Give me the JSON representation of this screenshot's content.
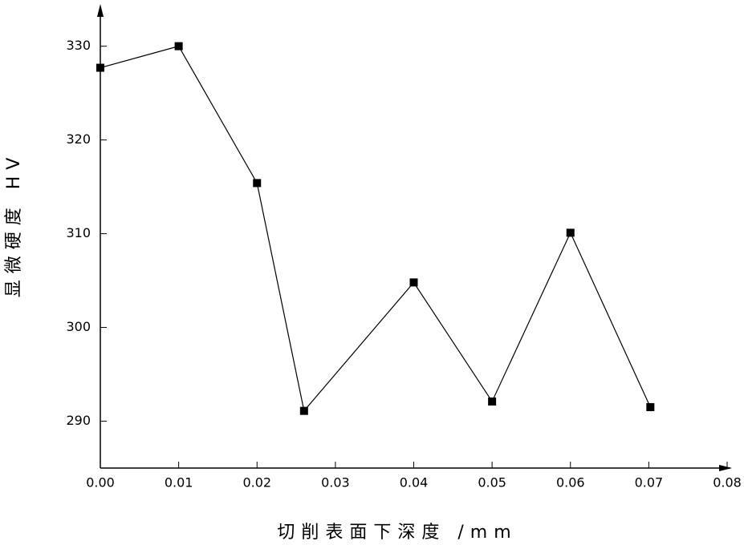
{
  "chart_data": {
    "type": "line",
    "x_label": "切削表面下深度 /mm",
    "y_label": "显微硬度 HV",
    "x": [
      0.0,
      0.01,
      0.02,
      0.026,
      0.04,
      0.05,
      0.06,
      0.0702
    ],
    "series": [
      {
        "color": "#000000",
        "values": [
          327.7,
          330,
          315.4,
          291.1,
          304.8,
          292.1,
          310.1,
          291.5
        ]
      }
    ],
    "xlim": [
      0,
      0.08
    ],
    "xticks": [
      {
        "value": 0,
        "label": "0.00"
      },
      {
        "value": 0.01,
        "label": "0.01"
      },
      {
        "value": 0.02,
        "label": "0.02"
      },
      {
        "value": 0.03,
        "label": "0.03"
      },
      {
        "value": 0.04,
        "label": "0.04"
      },
      {
        "value": 0.05,
        "label": "0.05"
      },
      {
        "value": 0.06,
        "label": "0.06"
      },
      {
        "value": 0.07,
        "label": "0.07"
      },
      {
        "value": 0.08,
        "label": "0.08"
      }
    ],
    "ylim": [
      285,
      334.5
    ],
    "yticks": [
      290,
      300,
      310,
      320,
      330
    ],
    "marker": "square"
  }
}
